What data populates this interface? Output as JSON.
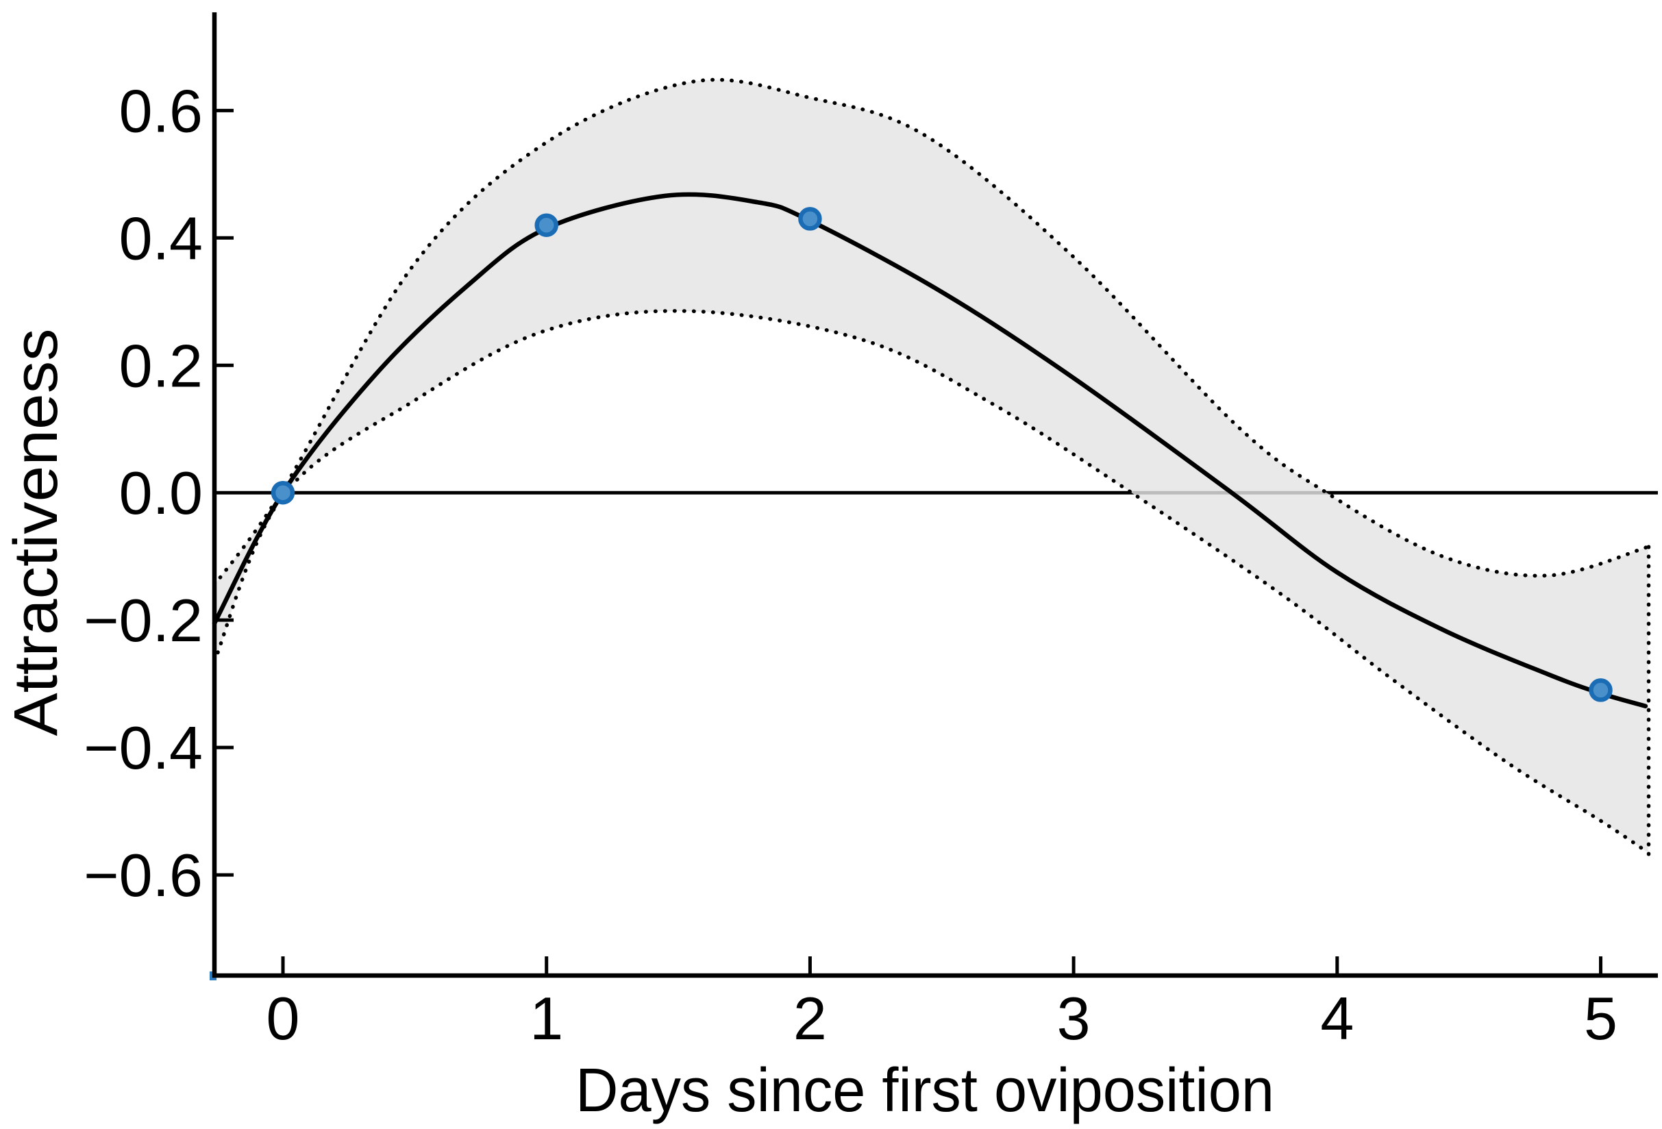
{
  "figure": {
    "y_axis": {
      "label": "Attractiveness",
      "tick_labels": [
        "0.6",
        "0.4",
        "0.2",
        "0.0",
        "−0.2",
        "−0.4",
        "−0.6"
      ],
      "tick_values": [
        0.6,
        0.4,
        0.2,
        0.0,
        -0.2,
        -0.4,
        -0.6
      ]
    },
    "x_axis": {
      "label": "Days since first oviposition",
      "tick_labels": [
        "0",
        "1",
        "2",
        "3",
        "4",
        "5"
      ],
      "tick_values": [
        0,
        1,
        2,
        3,
        4,
        5
      ]
    }
  },
  "chart_data": {
    "type": "line",
    "title": "",
    "xlabel": "Days since first oviposition",
    "ylabel": "Attractiveness",
    "xlim": [
      -0.26,
      5.217
    ],
    "ylim": [
      -0.758,
      0.752
    ],
    "x_ticks": [
      0,
      1,
      2,
      3,
      4,
      5
    ],
    "y_ticks": [
      -0.6,
      -0.4,
      -0.2,
      0.0,
      0.2,
      0.4,
      0.6
    ],
    "grid": false,
    "zero_reference_line": 0.0,
    "points": {
      "name": "observed-attractiveness",
      "x": [
        0,
        1,
        2,
        5
      ],
      "y": [
        0.0,
        0.42,
        0.43,
        -0.31
      ]
    },
    "fit_line": [
      [
        -0.26,
        -0.205
      ],
      [
        0,
        0.0
      ],
      [
        0.35,
        0.185
      ],
      [
        0.7,
        0.325
      ],
      [
        1,
        0.415
      ],
      [
        1.45,
        0.466
      ],
      [
        1.8,
        0.456
      ],
      [
        2,
        0.427
      ],
      [
        2.5,
        0.315
      ],
      [
        3,
        0.18
      ],
      [
        3.6,
        0.0
      ],
      [
        4,
        -0.125
      ],
      [
        4.4,
        -0.215
      ],
      [
        4.8,
        -0.285
      ],
      [
        5,
        -0.315
      ],
      [
        5.17,
        -0.335
      ]
    ],
    "ci_upper": [
      [
        -0.26,
        -0.145
      ],
      [
        0,
        0.005
      ],
      [
        0.5,
        0.36
      ],
      [
        1,
        0.55
      ],
      [
        1.55,
        0.645
      ],
      [
        2,
        0.62
      ],
      [
        2.44,
        0.56
      ],
      [
        3,
        0.37
      ],
      [
        3.62,
        0.105
      ],
      [
        3.96,
        0.0
      ],
      [
        4.4,
        -0.1
      ],
      [
        4.8,
        -0.13
      ],
      [
        5.18,
        -0.085
      ]
    ],
    "ci_lower": [
      [
        -0.26,
        -0.265
      ],
      [
        0,
        -0.005
      ],
      [
        0.5,
        0.145
      ],
      [
        1,
        0.255
      ],
      [
        1.55,
        0.285
      ],
      [
        2.2,
        0.24
      ],
      [
        2.69,
        0.14
      ],
      [
        3.22,
        0.0
      ],
      [
        3.79,
        -0.16
      ],
      [
        4.2,
        -0.29
      ],
      [
        4.65,
        -0.425
      ],
      [
        5,
        -0.515
      ],
      [
        5.18,
        -0.565
      ]
    ],
    "ci_right_edge": {
      "x": 5.182,
      "top": -0.085,
      "bottom": -0.571
    },
    "colors": {
      "point_fill": "#4a90cb",
      "point_stroke": "#1a6cb5",
      "band": "#e4e4e4",
      "line": "#000000",
      "corner_artifact": "#2e7bbf"
    }
  }
}
